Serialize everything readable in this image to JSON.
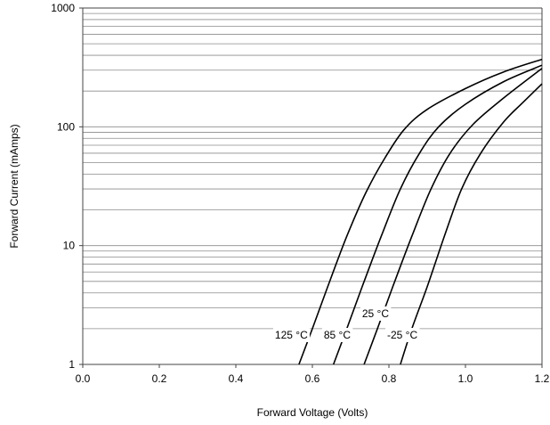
{
  "chart_data": {
    "type": "line",
    "title": "",
    "xlabel": "Forward Voltage (Volts)",
    "ylabel": "Forward Current (mAmps)",
    "xlim": [
      0,
      1.2
    ],
    "ylim": [
      1,
      1000
    ],
    "yscale": "log",
    "grid": true,
    "legend": "none",
    "x_ticks": [
      0.0,
      0.2,
      0.4,
      0.6,
      0.8,
      1.0,
      1.2
    ],
    "x_tick_labels": [
      "0.0",
      "0.2",
      "0.4",
      "0.6",
      "0.8",
      "1.0",
      "1.2"
    ],
    "y_ticks": [
      1,
      10,
      100,
      1000
    ],
    "y_tick_labels": [
      "1",
      "10",
      "100",
      "1000"
    ],
    "series": [
      {
        "name": "125 °C",
        "points": [
          [
            0.565,
            1
          ],
          [
            0.6,
            2
          ],
          [
            0.64,
            4.5
          ],
          [
            0.69,
            12
          ],
          [
            0.74,
            28
          ],
          [
            0.79,
            55
          ],
          [
            0.84,
            95
          ],
          [
            0.9,
            140
          ],
          [
            1.0,
            210
          ],
          [
            1.1,
            290
          ],
          [
            1.2,
            370
          ]
        ],
        "label_pos": [
          0.545,
          1.65
        ]
      },
      {
        "name": "85 °C",
        "points": [
          [
            0.655,
            1
          ],
          [
            0.69,
            2
          ],
          [
            0.73,
            4.5
          ],
          [
            0.78,
            12
          ],
          [
            0.83,
            30
          ],
          [
            0.88,
            60
          ],
          [
            0.93,
            100
          ],
          [
            1.0,
            155
          ],
          [
            1.1,
            240
          ],
          [
            1.2,
            330
          ]
        ],
        "label_pos": [
          0.665,
          1.65
        ]
      },
      {
        "name": "25 °C",
        "points": [
          [
            0.735,
            1
          ],
          [
            0.77,
            2
          ],
          [
            0.81,
            4.5
          ],
          [
            0.86,
            12
          ],
          [
            0.91,
            30
          ],
          [
            0.96,
            60
          ],
          [
            1.02,
            105
          ],
          [
            1.1,
            175
          ],
          [
            1.2,
            310
          ]
        ],
        "label_pos": [
          0.765,
          2.5
        ]
      },
      {
        "name": "-25 °C",
        "points": [
          [
            0.83,
            1
          ],
          [
            0.86,
            2
          ],
          [
            0.9,
            4.5
          ],
          [
            0.945,
            12
          ],
          [
            0.99,
            30
          ],
          [
            1.04,
            60
          ],
          [
            1.1,
            110
          ],
          [
            1.15,
            160
          ],
          [
            1.2,
            230
          ]
        ],
        "label_pos": [
          0.835,
          1.65
        ]
      }
    ]
  }
}
